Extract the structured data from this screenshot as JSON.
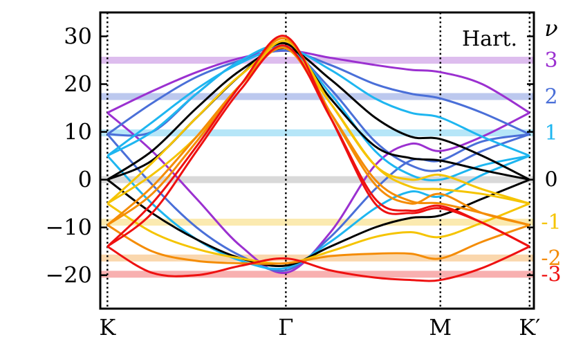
{
  "chart_data": {
    "type": "line",
    "corner_label": "Hart.",
    "nu_title": "ν",
    "x_ticks": [
      "K",
      "Γ",
      "M",
      "K′"
    ],
    "x_positions": [
      0,
      1,
      1.866,
      2.366
    ],
    "y_ticks": [
      30,
      20,
      10,
      0,
      -10,
      -20
    ],
    "y_tick_labels": [
      "30",
      "20",
      "10",
      "0",
      "−10",
      "−20"
    ],
    "xlim": [
      -0.04,
      2.39
    ],
    "ylim": [
      -27,
      35
    ],
    "grid": false,
    "nu_levels": [
      {
        "label": "3",
        "value": 25.0,
        "color": "#9b30d0",
        "band_color": "#ddbdee"
      },
      {
        "label": "2",
        "value": 17.4,
        "color": "#4a6fd8",
        "band_color": "#bcc8ee"
      },
      {
        "label": "1",
        "value": 9.8,
        "color": "#1eb6f0",
        "band_color": "#b6e6f8"
      },
      {
        "label": "0",
        "value": 0.0,
        "color": "#000000",
        "band_color": "#d9d9d9"
      },
      {
        "label": "-1",
        "value": -8.9,
        "color": "#f5c400",
        "band_color": "#fbeab0"
      },
      {
        "label": "-2",
        "value": -16.4,
        "color": "#f48c06",
        "band_color": "#fad7ad"
      },
      {
        "label": "-3",
        "value": -19.8,
        "color": "#ee1111",
        "band_color": "#f8b0b0"
      }
    ],
    "series": [
      {
        "color": "#9b30d0",
        "x": [
          0,
          0.25,
          0.5,
          0.75,
          1,
          1.25,
          1.5,
          1.7,
          1.866,
          2.1,
          2.366
        ],
        "y": [
          14,
          18.5,
          22.5,
          25.5,
          27,
          25.5,
          24,
          23,
          22.5,
          20,
          14
        ]
      },
      {
        "color": "#9b30d0",
        "x": [
          0,
          0.25,
          0.5,
          0.75,
          1,
          1.25,
          1.5,
          1.7,
          1.866,
          2.1,
          2.366
        ],
        "y": [
          14,
          6,
          -4,
          -14,
          -19.5,
          -11,
          3,
          7.5,
          6,
          9,
          14
        ]
      },
      {
        "color": "#4a6fd8",
        "x": [
          0,
          0.25,
          0.5,
          0.75,
          1,
          1.25,
          1.5,
          1.7,
          1.866,
          2.1,
          2.366
        ],
        "y": [
          9.5,
          16,
          21.5,
          25,
          27,
          24,
          20,
          18,
          17,
          14,
          9.5
        ]
      },
      {
        "color": "#4a6fd8",
        "x": [
          0,
          0.25,
          0.5,
          0.75,
          1,
          1.25,
          1.5,
          1.7,
          1.866,
          2.1,
          2.366
        ],
        "y": [
          9.5,
          -1,
          -10,
          -16,
          -19,
          -12,
          -2,
          4,
          4,
          8,
          9.5
        ]
      },
      {
        "color": "#4a6fd8",
        "x": [
          0,
          0.25,
          0.5,
          0.75,
          1,
          1.25,
          1.5,
          1.7,
          1.866,
          2.1,
          2.366
        ],
        "y": [
          9.5,
          10,
          18,
          25,
          27.5,
          19,
          8,
          3,
          2,
          6,
          9.5
        ]
      },
      {
        "color": "#1eb6f0",
        "x": [
          0,
          0.25,
          0.5,
          0.75,
          1,
          1.25,
          1.5,
          1.7,
          1.866,
          2.1,
          2.366
        ],
        "y": [
          5,
          12,
          19,
          24.5,
          27.5,
          23,
          17,
          14,
          13,
          9,
          5
        ]
      },
      {
        "color": "#1eb6f0",
        "x": [
          0,
          0.25,
          0.5,
          0.75,
          1,
          1.25,
          1.5,
          1.7,
          1.866,
          2.1,
          2.366
        ],
        "y": [
          5,
          -5,
          -12.5,
          -17,
          -18.5,
          -13,
          -6,
          -2.5,
          -3.5,
          1,
          5
        ]
      },
      {
        "color": "#1eb6f0",
        "x": [
          0,
          0.25,
          0.5,
          0.75,
          1,
          1.25,
          1.5,
          1.7,
          1.866,
          2.1,
          2.366
        ],
        "y": [
          5,
          10,
          18,
          25,
          27.8,
          18,
          6,
          1,
          0,
          3,
          5
        ]
      },
      {
        "color": "#000000",
        "x": [
          0,
          0.25,
          0.5,
          0.75,
          1,
          1.25,
          1.5,
          1.7,
          1.866,
          2.1,
          2.366
        ],
        "y": [
          0,
          6,
          15,
          23,
          27.5,
          21,
          13,
          9,
          8.5,
          5,
          0
        ]
      },
      {
        "color": "#000000",
        "x": [
          0,
          0.25,
          0.5,
          0.75,
          1,
          1.25,
          1.5,
          1.7,
          1.866,
          2.1,
          2.366
        ],
        "y": [
          0,
          -7,
          -12.5,
          -16.5,
          -18,
          -14,
          -10,
          -8,
          -7.5,
          -4,
          0
        ]
      },
      {
        "color": "#000000",
        "x": [
          0,
          0.25,
          0.5,
          0.75,
          1,
          1.25,
          1.5,
          1.7,
          1.866,
          2.1,
          2.366
        ],
        "y": [
          0,
          4,
          13,
          22,
          28.5,
          17,
          7,
          4.5,
          4,
          2,
          0
        ]
      },
      {
        "color": "#f5c400",
        "x": [
          0,
          0.25,
          0.5,
          0.75,
          1,
          1.25,
          1.5,
          1.7,
          1.866,
          2.1,
          2.366
        ],
        "y": [
          -5,
          3.5,
          13,
          22,
          27.5,
          16,
          3,
          -1.5,
          -2,
          -3,
          -5
        ]
      },
      {
        "color": "#f5c400",
        "x": [
          0,
          0.25,
          0.5,
          0.75,
          1,
          1.25,
          1.5,
          1.7,
          1.866,
          2.1,
          2.366
        ],
        "y": [
          -5,
          -11,
          -14.5,
          -16.5,
          -17.5,
          -15,
          -12,
          -11,
          -12,
          -9,
          -5
        ]
      },
      {
        "color": "#f5c400",
        "x": [
          0,
          0.25,
          0.5,
          0.75,
          1,
          1.25,
          1.5,
          1.7,
          1.866,
          2.1,
          2.366
        ],
        "y": [
          -5,
          1,
          9,
          20,
          29,
          16,
          3,
          0,
          1,
          -2,
          -5
        ]
      },
      {
        "color": "#f48c06",
        "x": [
          0,
          0.25,
          0.5,
          0.75,
          1,
          1.25,
          1.5,
          1.7,
          1.866,
          2.1,
          2.366
        ],
        "y": [
          -9.5,
          -1.5,
          9,
          20,
          27.5,
          14,
          0,
          -4.5,
          -5,
          -7,
          -9.5
        ]
      },
      {
        "color": "#f48c06",
        "x": [
          0,
          0.25,
          0.5,
          0.75,
          1,
          1.25,
          1.5,
          1.7,
          1.866,
          2.1,
          2.366
        ],
        "y": [
          -9.5,
          -15,
          -17,
          -17.5,
          -17.5,
          -16,
          -15.5,
          -15.5,
          -16.5,
          -13,
          -9.5
        ]
      },
      {
        "color": "#f48c06",
        "x": [
          0,
          0.25,
          0.5,
          0.75,
          1,
          1.25,
          1.5,
          1.7,
          1.866,
          2.1,
          2.366
        ],
        "y": [
          -9.5,
          -3,
          8,
          20,
          29.5,
          14,
          -1,
          -5,
          -3,
          -7,
          -9.5
        ]
      },
      {
        "color": "#ee1111",
        "x": [
          0,
          0.25,
          0.5,
          0.75,
          1,
          1.25,
          1.5,
          1.7,
          1.866,
          2.1,
          2.366
        ],
        "y": [
          -14,
          -7,
          6,
          19,
          28,
          13,
          -4,
          -6.5,
          -5.5,
          -9,
          -14
        ]
      },
      {
        "color": "#ee1111",
        "x": [
          0,
          0.25,
          0.5,
          0.75,
          1,
          1.25,
          1.5,
          1.7,
          1.866,
          2.1,
          2.366
        ],
        "y": [
          -14,
          -19.5,
          -20,
          -18,
          -16.5,
          -19,
          -20.5,
          -21,
          -21,
          -18.5,
          -14
        ]
      },
      {
        "color": "#ee1111",
        "x": [
          0,
          0.25,
          0.5,
          0.75,
          1,
          1.25,
          1.5,
          1.7,
          1.866,
          2.1,
          2.366
        ],
        "y": [
          -14,
          -5,
          7,
          20,
          30,
          13,
          -5,
          -7,
          -6,
          -9,
          -14
        ]
      }
    ]
  }
}
